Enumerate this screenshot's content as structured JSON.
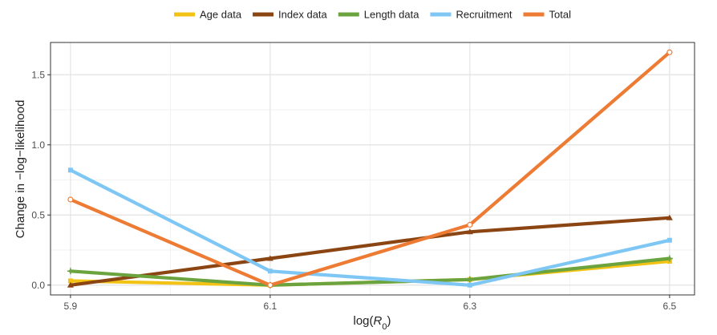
{
  "chart_data": {
    "type": "line",
    "title": "",
    "xlabel_main": "log(",
    "xlabel_var": "R",
    "xlabel_sub": "0",
    "xlabel_close": ")",
    "ylabel": "Change in −log−likelihood",
    "x": [
      5.9,
      6.1,
      6.3,
      6.5
    ],
    "xticks": [
      "5.9",
      "6.1",
      "6.3",
      "6.5"
    ],
    "xlim": [
      5.88,
      6.525
    ],
    "yticks": [
      "0.0",
      "0.5",
      "1.0",
      "1.5"
    ],
    "ylim": [
      -0.07,
      1.73
    ],
    "grid": true,
    "legend_position": "top",
    "series": [
      {
        "name": "Age data",
        "color": "#F2C314",
        "marker": "square",
        "values": [
          0.03,
          0.0,
          0.04,
          0.17
        ]
      },
      {
        "name": "Index data",
        "color": "#8B4513",
        "marker": "triangle",
        "values": [
          0.0,
          0.19,
          0.38,
          0.48
        ]
      },
      {
        "name": "Length data",
        "color": "#6BA33E",
        "marker": "plus",
        "values": [
          0.1,
          0.0,
          0.04,
          0.19
        ]
      },
      {
        "name": "Recruitment",
        "color": "#7EC7F5",
        "marker": "square",
        "values": [
          0.82,
          0.1,
          0.0,
          0.32
        ]
      },
      {
        "name": "Total",
        "color": "#EE7B33",
        "marker": "circle",
        "values": [
          0.61,
          0.0,
          0.43,
          1.66
        ]
      }
    ]
  }
}
